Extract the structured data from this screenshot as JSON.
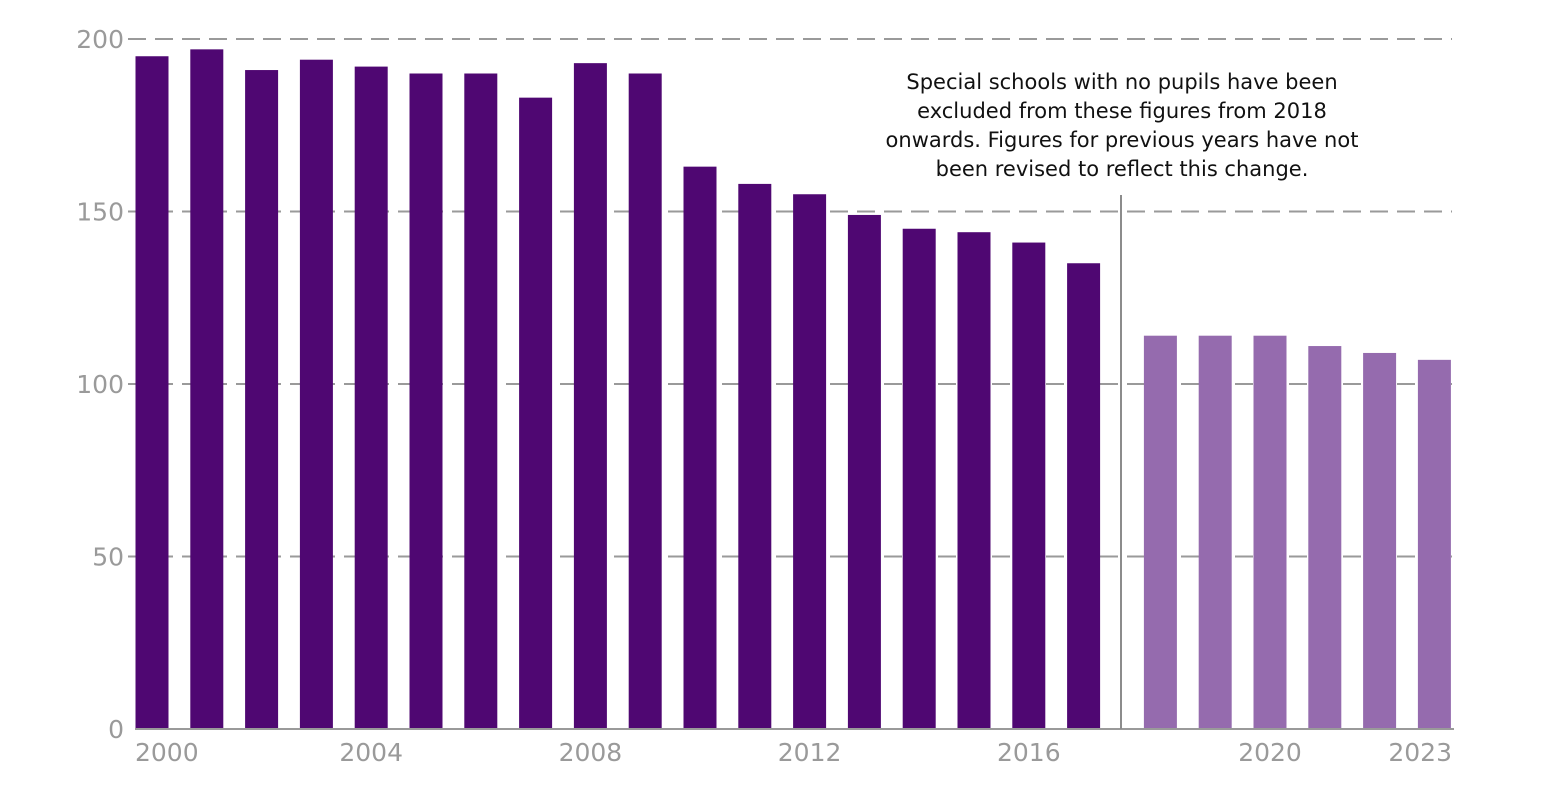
{
  "chart_data": {
    "type": "bar",
    "title": "",
    "xlabel": "",
    "ylabel": "",
    "ylim": [
      0,
      200
    ],
    "yticks": [
      "0",
      "50",
      "100",
      "150",
      "200"
    ],
    "xtick_labels": [
      "2000",
      "2004",
      "2008",
      "2012",
      "2016",
      "2020",
      "2023"
    ],
    "grid": "horizontal dashed",
    "categories": [
      "2000",
      "2001",
      "2002",
      "2003",
      "2004",
      "2005",
      "2006",
      "2007",
      "2008",
      "2009",
      "2010",
      "2011",
      "2012",
      "2013",
      "2014",
      "2015",
      "2016",
      "2017",
      "2018",
      "2019",
      "2020",
      "2021",
      "2022",
      "2023"
    ],
    "values": [
      195,
      197,
      191,
      194,
      192,
      190,
      190,
      183,
      193,
      190,
      163,
      158,
      155,
      149,
      145,
      144,
      141,
      135,
      114,
      114,
      114,
      111,
      109,
      107
    ],
    "colors": {
      "before_2018": "#4f0772",
      "from_2018": "#956bae",
      "grid": "#9a9a9a",
      "divider": "#8c8c8c"
    },
    "annotation": {
      "lines": [
        "Special schools with no pupils have been",
        "excluded from these figures from 2018",
        "onwards. Figures for previous years have not",
        "been revised to reflect this change."
      ]
    }
  }
}
